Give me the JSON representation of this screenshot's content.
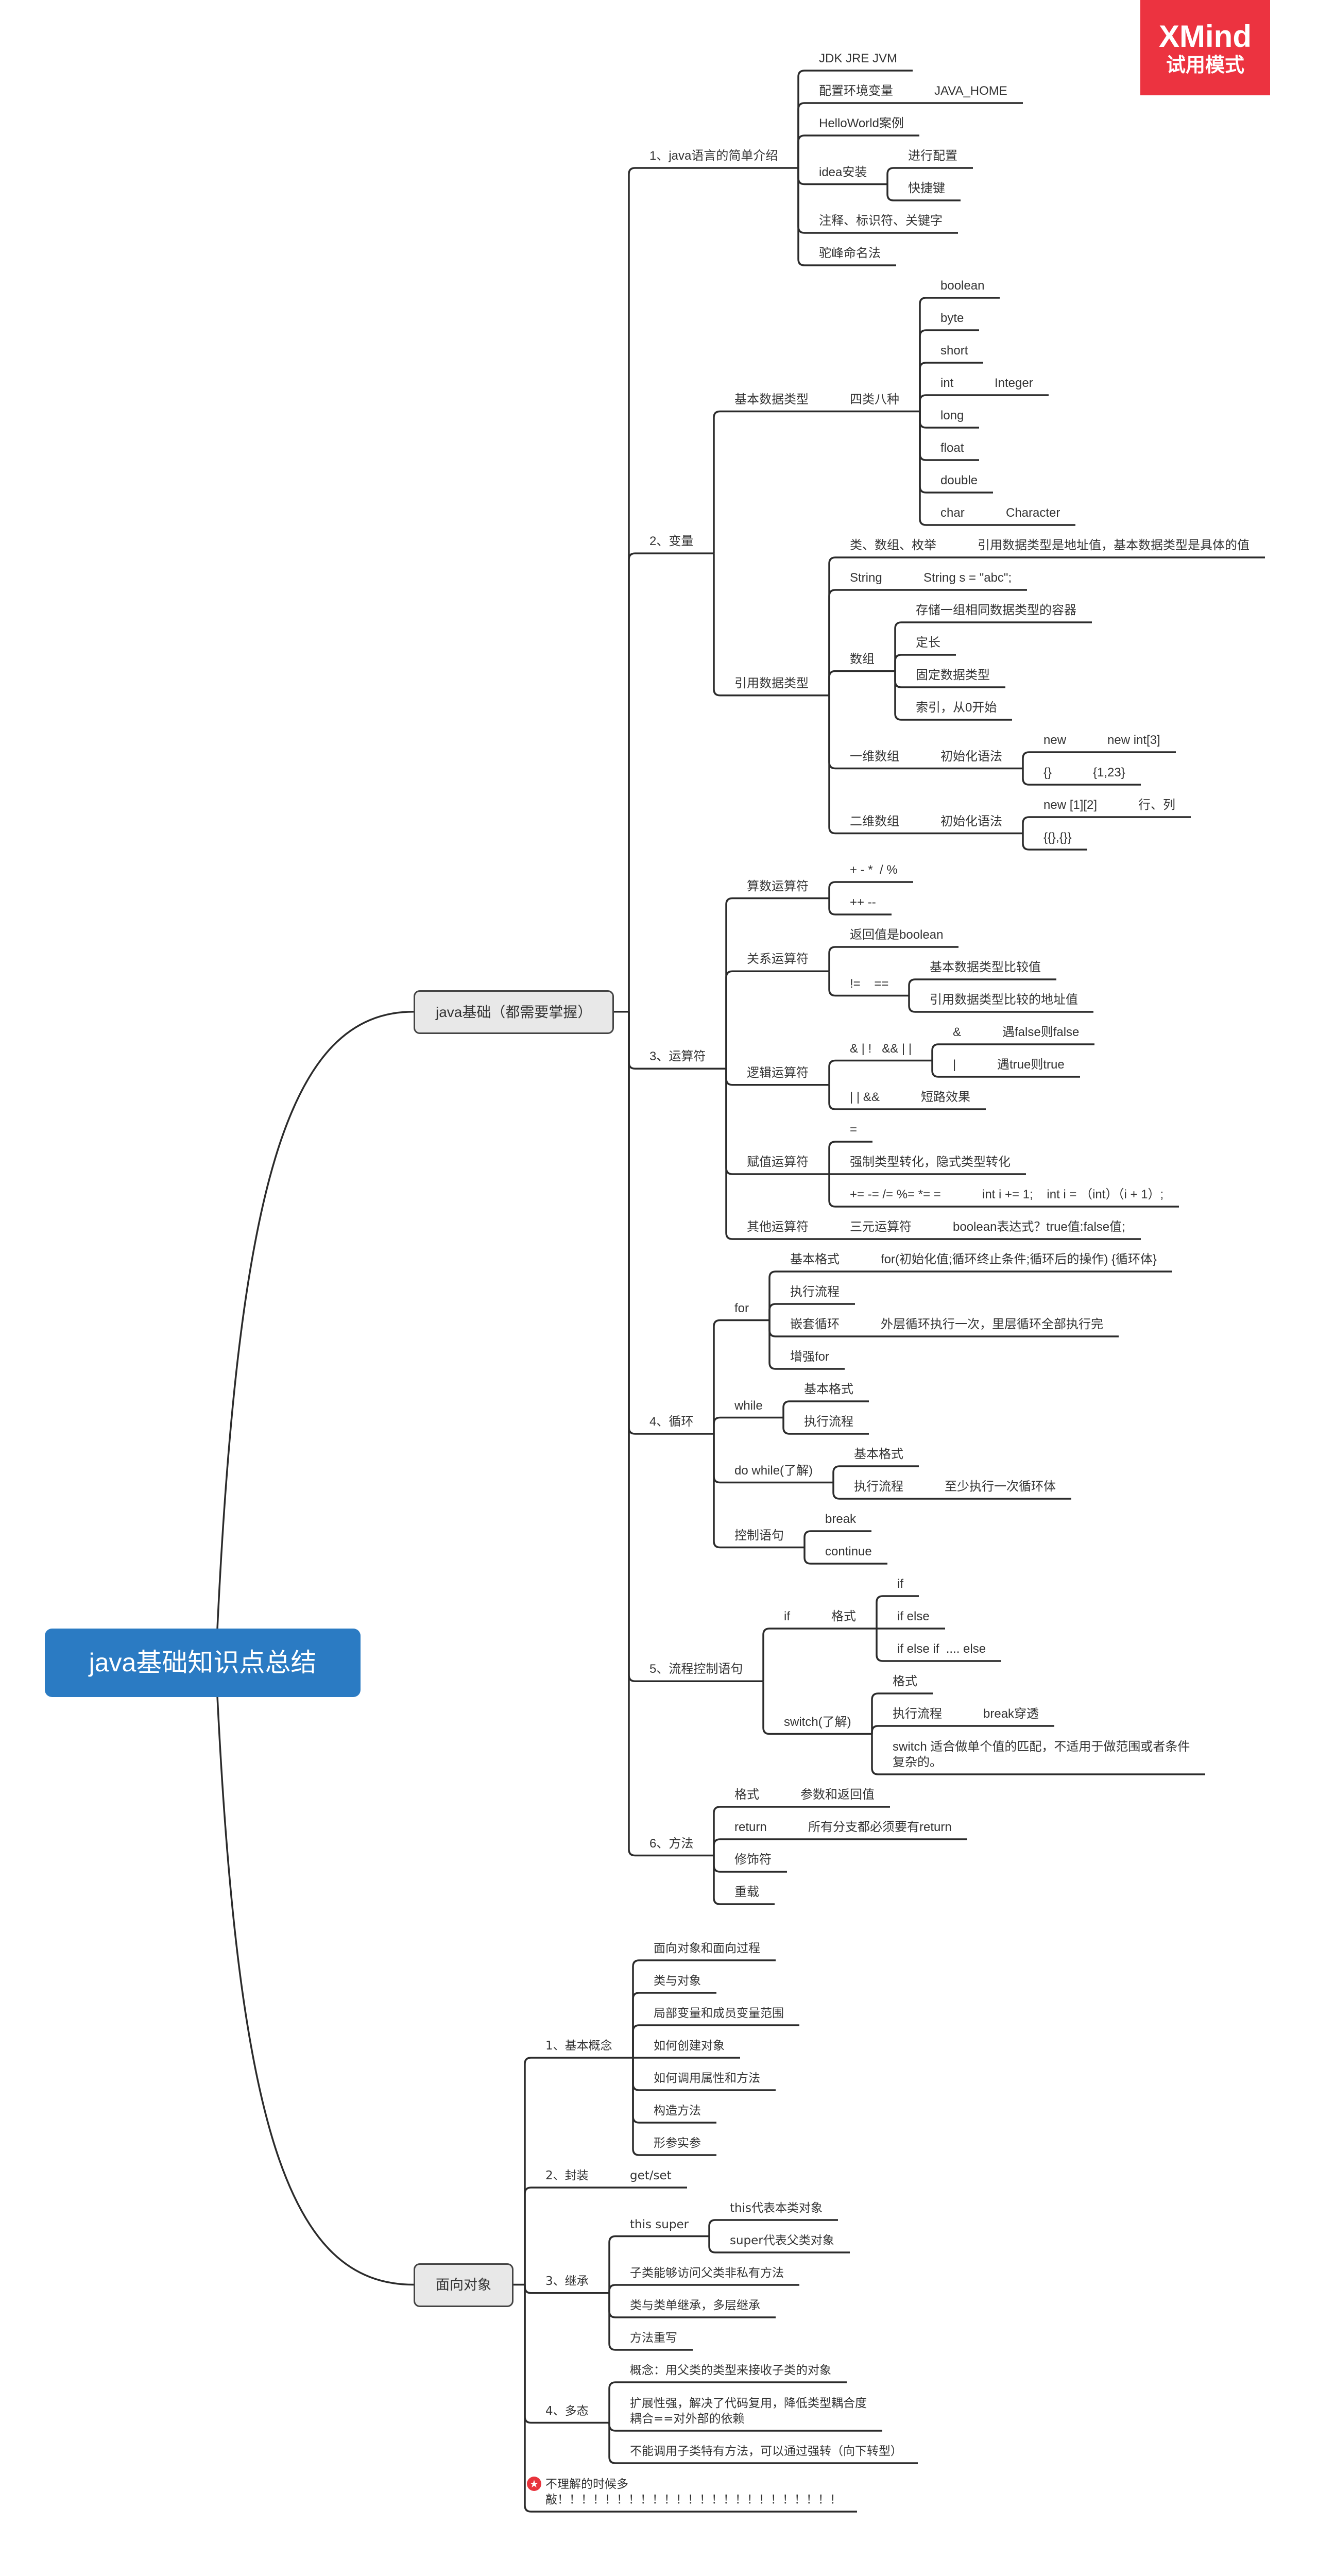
{
  "watermark": {
    "brand": "XMind",
    "mode": "试用模式",
    "color": "#ec3340"
  },
  "root": {
    "title": "java基础知识点总结",
    "color": "#2b7bc3"
  },
  "branches": [
    {
      "label": "java基础（都需要掌握）",
      "children": [
        {
          "label": "1、java语言的简单介绍",
          "children": [
            {
              "label": "JDK JRE JVM"
            },
            {
              "label": "配置环境变量",
              "children": [
                {
                  "label": "JAVA_HOME"
                }
              ]
            },
            {
              "label": "HelloWorld案例"
            },
            {
              "label": "idea安装",
              "children": [
                {
                  "label": "进行配置"
                },
                {
                  "label": "快捷键"
                }
              ]
            },
            {
              "label": "注释、标识符、关键字"
            },
            {
              "label": "驼峰命名法"
            }
          ]
        },
        {
          "label": "2、变量",
          "children": [
            {
              "label": "基本数据类型",
              "children": [
                {
                  "label": "四类八种",
                  "children": [
                    {
                      "label": "boolean"
                    },
                    {
                      "label": "byte"
                    },
                    {
                      "label": "short"
                    },
                    {
                      "label": "int",
                      "children": [
                        {
                          "label": "Integer"
                        }
                      ]
                    },
                    {
                      "label": "long"
                    },
                    {
                      "label": "float"
                    },
                    {
                      "label": "double"
                    },
                    {
                      "label": "char",
                      "children": [
                        {
                          "label": "Character"
                        }
                      ]
                    }
                  ]
                }
              ]
            },
            {
              "label": "引用数据类型",
              "children": [
                {
                  "label": "类、数组、枚举",
                  "children": [
                    {
                      "label": "引用数据类型是地址值，基本数据类型是具体的值"
                    }
                  ]
                },
                {
                  "label": "String",
                  "children": [
                    {
                      "label": "String s = \"abc\";"
                    }
                  ]
                },
                {
                  "label": "数组",
                  "children": [
                    {
                      "label": "存储一组相同数据类型的容器"
                    },
                    {
                      "label": "定长"
                    },
                    {
                      "label": "固定数据类型"
                    },
                    {
                      "label": "索引，从0开始"
                    }
                  ]
                },
                {
                  "label": "一维数组",
                  "children": [
                    {
                      "label": "初始化语法",
                      "children": [
                        {
                          "label": "new",
                          "children": [
                            {
                              "label": "new int[3]"
                            }
                          ]
                        },
                        {
                          "label": "{}",
                          "children": [
                            {
                              "label": "{1,23}"
                            }
                          ]
                        }
                      ]
                    }
                  ]
                },
                {
                  "label": "二维数组",
                  "children": [
                    {
                      "label": "初始化语法",
                      "children": [
                        {
                          "label": "new [1][2]",
                          "children": [
                            {
                              "label": "行、列"
                            }
                          ]
                        },
                        {
                          "label": "{{},{}}"
                        }
                      ]
                    }
                  ]
                }
              ]
            }
          ]
        },
        {
          "label": "3、运算符",
          "children": [
            {
              "label": "算数运算符",
              "children": [
                {
                  "label": "+ - *  / %"
                },
                {
                  "label": "++ --"
                }
              ]
            },
            {
              "label": "关系运算符",
              "children": [
                {
                  "label": "返回值是boolean"
                },
                {
                  "label": "!=    ==",
                  "children": [
                    {
                      "label": "基本数据类型比较值"
                    },
                    {
                      "label": "引用数据类型比较的地址值"
                    }
                  ]
                }
              ]
            },
            {
              "label": "逻辑运算符",
              "children": [
                {
                  "label": "& | !   && | |",
                  "children": [
                    {
                      "label": "&",
                      "children": [
                        {
                          "label": "遇false则false"
                        }
                      ]
                    },
                    {
                      "label": "|",
                      "children": [
                        {
                          "label": "遇true则true"
                        }
                      ]
                    }
                  ]
                },
                {
                  "label": "| | &&",
                  "children": [
                    {
                      "label": "短路效果"
                    }
                  ]
                }
              ]
            },
            {
              "label": "赋值运算符",
              "children": [
                {
                  "label": "="
                },
                {
                  "label": "强制类型转化，隐式类型转化"
                },
                {
                  "label": "+= -= /= %= *= =",
                  "children": [
                    {
                      "label": "int i += 1;    int i = （int）（i + 1）;"
                    }
                  ]
                }
              ]
            },
            {
              "label": "其他运算符",
              "children": [
                {
                  "label": "三元运算符",
                  "children": [
                    {
                      "label": "boolean表达式？true值:false值;"
                    }
                  ]
                }
              ]
            }
          ]
        },
        {
          "label": "4、循环",
          "children": [
            {
              "label": "for",
              "children": [
                {
                  "label": "基本格式",
                  "children": [
                    {
                      "label": "for(初始化值;循环终止条件;循环后的操作) {循环体}"
                    }
                  ]
                },
                {
                  "label": "执行流程"
                },
                {
                  "label": "嵌套循环",
                  "children": [
                    {
                      "label": "外层循环执行一次，里层循环全部执行完"
                    }
                  ]
                },
                {
                  "label": "增强for"
                }
              ]
            },
            {
              "label": "while",
              "children": [
                {
                  "label": "基本格式"
                },
                {
                  "label": "执行流程"
                }
              ]
            },
            {
              "label": "do while(了解)",
              "children": [
                {
                  "label": "基本格式"
                },
                {
                  "label": "执行流程",
                  "children": [
                    {
                      "label": "至少执行一次循环体"
                    }
                  ]
                }
              ]
            },
            {
              "label": "控制语句",
              "children": [
                {
                  "label": "break"
                },
                {
                  "label": "continue"
                }
              ]
            }
          ]
        },
        {
          "label": "5、流程控制语句",
          "children": [
            {
              "label": "if",
              "children": [
                {
                  "label": "格式",
                  "children": [
                    {
                      "label": "if"
                    },
                    {
                      "label": "if else"
                    },
                    {
                      "label": "if else if  .... else"
                    }
                  ]
                }
              ]
            },
            {
              "label": "switch(了解)",
              "children": [
                {
                  "label": "格式"
                },
                {
                  "label": "执行流程",
                  "children": [
                    {
                      "label": "break穿透"
                    }
                  ]
                },
                {
                  "label": "switch 适合做单个值的匹配，不适用于做范围或者条件\n复杂的。"
                }
              ]
            }
          ]
        },
        {
          "label": "6、方法",
          "children": [
            {
              "label": "格式",
              "children": [
                {
                  "label": "参数和返回值"
                }
              ]
            },
            {
              "label": "return",
              "children": [
                {
                  "label": "所有分支都必须要有return"
                }
              ]
            },
            {
              "label": "修饰符"
            },
            {
              "label": "重载"
            }
          ]
        }
      ]
    },
    {
      "label": "面向对象",
      "children": [
        {
          "label": "1、基本概念",
          "children": [
            {
              "label": "面向对象和面向过程"
            },
            {
              "label": "类与对象"
            },
            {
              "label": "局部变量和成员变量范围"
            },
            {
              "label": "如何创建对象"
            },
            {
              "label": "如何调用属性和方法"
            },
            {
              "label": "构造方法"
            },
            {
              "label": "形参实参"
            }
          ]
        },
        {
          "label": "2、封装",
          "children": [
            {
              "label": "get/set"
            }
          ]
        },
        {
          "label": "3、继承",
          "children": [
            {
              "label": "this super",
              "children": [
                {
                  "label": "this代表本类对象"
                },
                {
                  "label": "super代表父类对象"
                }
              ]
            },
            {
              "label": "子类能够访问父类非私有方法"
            },
            {
              "label": "类与类单继承，多层继承"
            },
            {
              "label": "方法重写"
            }
          ]
        },
        {
          "label": "4、多态",
          "children": [
            {
              "label": "概念：用父类的类型来接收子类的对象"
            },
            {
              "label": "扩展性强，解决了代码复用，降低类型耦合度\n耦合==对外部的依赖"
            },
            {
              "label": "不能调用子类特有方法，可以通过强转（向下转型）"
            }
          ]
        },
        {
          "label": "不理解的时候多\n敲！！！！！！！！！！！！！！！！！！！！！！！！",
          "marker": "star-icon"
        }
      ]
    }
  ]
}
